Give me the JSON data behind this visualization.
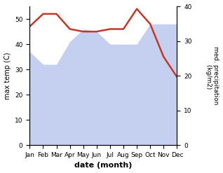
{
  "months": [
    "Jan",
    "Feb",
    "Mar",
    "Apr",
    "May",
    "Jun",
    "Jul",
    "Aug",
    "Sep",
    "Oct",
    "Nov",
    "Dec"
  ],
  "month_indices": [
    0,
    1,
    2,
    3,
    4,
    5,
    6,
    7,
    8,
    9,
    10,
    11
  ],
  "max_temp": [
    47,
    52,
    52,
    46,
    45,
    45,
    46,
    46,
    54,
    48,
    35,
    27
  ],
  "precipitation": [
    37,
    32,
    32,
    41,
    46,
    45,
    40,
    40,
    40,
    48,
    48,
    48
  ],
  "temp_color": "#c0392b",
  "precip_fill_color": "#c5d0f0",
  "temp_ylim": [
    0,
    55
  ],
  "precip_ylim": [
    0,
    40
  ],
  "temp_yticks": [
    0,
    10,
    20,
    30,
    40,
    50
  ],
  "precip_yticks": [
    0,
    10,
    20,
    30,
    40
  ],
  "xlabel": "date (month)",
  "ylabel_left": "max temp (C)",
  "ylabel_right": "med. precipitation\n (kg/m2)",
  "background_color": "#ffffff"
}
